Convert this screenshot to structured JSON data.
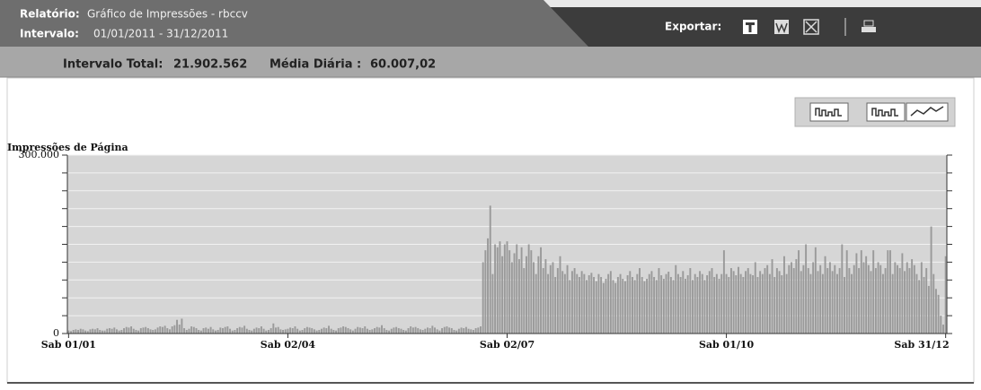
{
  "header": {
    "report_label": "Relatório:",
    "report_value": "Gráfico de Impressões - rbccv",
    "interval_label": "Intervalo:",
    "interval_value": "01/01/2011 - 31/12/2011",
    "export_label": "Exportar:"
  },
  "summary": {
    "total_label": "Intervalo Total:",
    "total_value": "21.902.562",
    "avg_label": "Média Diária :",
    "avg_value": "60.007,02"
  },
  "chart_data": {
    "type": "bar",
    "y_axis_label": "Impressões de Página",
    "color": "#9a9a9a",
    "grid": true,
    "ylim": [
      0,
      300000
    ],
    "yticks": [
      0,
      {
        "value": 30000,
        "label": null
      },
      {
        "value": 60000,
        "label": null
      },
      {
        "value": 90000,
        "label": null
      },
      {
        "value": 120000,
        "label": null
      },
      {
        "value": 150000,
        "label": null
      },
      {
        "value": 180000,
        "label": null
      },
      {
        "value": 210000,
        "label": null
      },
      {
        "value": 240000,
        "label": null
      },
      {
        "value": 270000,
        "label": null
      },
      {
        "value": 300000,
        "label": "300.000"
      }
    ],
    "categories": [
      "Sab 01/01",
      null,
      null,
      null,
      null,
      null,
      null,
      null,
      null,
      null,
      null,
      null,
      null,
      null,
      null,
      null,
      null,
      null,
      null,
      null,
      null,
      null,
      null,
      null,
      null,
      null,
      null,
      null,
      null,
      null,
      null,
      null,
      null,
      null,
      null,
      null,
      null,
      null,
      null,
      null,
      null,
      null,
      null,
      null,
      null,
      null,
      null,
      null,
      null,
      null,
      null,
      null,
      null,
      null,
      null,
      null,
      null,
      null,
      null,
      null,
      null,
      null,
      null,
      null,
      null,
      null,
      null,
      null,
      null,
      null,
      null,
      null,
      null,
      null,
      null,
      null,
      null,
      null,
      null,
      null,
      null,
      null,
      null,
      null,
      null,
      null,
      null,
      null,
      null,
      null,
      null,
      "Sab 02/04",
      null,
      null,
      null,
      null,
      null,
      null,
      null,
      null,
      null,
      null,
      null,
      null,
      null,
      null,
      null,
      null,
      null,
      null,
      null,
      null,
      null,
      null,
      null,
      null,
      null,
      null,
      null,
      null,
      null,
      null,
      null,
      null,
      null,
      null,
      null,
      null,
      null,
      null,
      null,
      null,
      null,
      null,
      null,
      null,
      null,
      null,
      null,
      null,
      null,
      null,
      null,
      null,
      null,
      null,
      null,
      null,
      null,
      null,
      null,
      null,
      null,
      null,
      null,
      null,
      null,
      null,
      null,
      null,
      null,
      null,
      null,
      null,
      null,
      null,
      null,
      null,
      null,
      null,
      null,
      null,
      null,
      null,
      null,
      null,
      null,
      null,
      null,
      null,
      null,
      null,
      "Sab 02/07",
      null,
      null,
      null,
      null,
      null,
      null,
      null,
      null,
      null,
      null,
      null,
      null,
      null,
      null,
      null,
      null,
      null,
      null,
      null,
      null,
      null,
      null,
      null,
      null,
      null,
      null,
      null,
      null,
      null,
      null,
      null,
      null,
      null,
      null,
      null,
      null,
      null,
      null,
      null,
      null,
      null,
      null,
      null,
      null,
      null,
      null,
      null,
      null,
      null,
      null,
      null,
      null,
      null,
      null,
      null,
      null,
      null,
      null,
      null,
      null,
      null,
      null,
      null,
      null,
      null,
      null,
      null,
      null,
      null,
      null,
      null,
      null,
      null,
      null,
      null,
      null,
      null,
      null,
      null,
      null,
      null,
      null,
      null,
      null,
      null,
      null,
      null,
      null,
      null,
      null,
      "Sab 01/10",
      null,
      null,
      null,
      null,
      null,
      null,
      null,
      null,
      null,
      null,
      null,
      null,
      null,
      null,
      null,
      null,
      null,
      null,
      null,
      null,
      null,
      null,
      null,
      null,
      null,
      null,
      null,
      null,
      null,
      null,
      null,
      null,
      null,
      null,
      null,
      null,
      null,
      null,
      null,
      null,
      null,
      null,
      null,
      null,
      null,
      null,
      null,
      null,
      null,
      null,
      null,
      null,
      null,
      null,
      null,
      null,
      null,
      null,
      null,
      null,
      null,
      null,
      null,
      null,
      null,
      null,
      null,
      null,
      null,
      null,
      null,
      null,
      null,
      null,
      null,
      null,
      null,
      null,
      null,
      null,
      null,
      null,
      null,
      null,
      null,
      null,
      null,
      null,
      null,
      null,
      "Sab 31/12"
    ],
    "values": [
      5000,
      4000,
      6000,
      7000,
      6000,
      8000,
      7000,
      5000,
      4000,
      7000,
      8000,
      7000,
      9000,
      6000,
      5000,
      5000,
      8000,
      9000,
      8000,
      10000,
      7000,
      5000,
      6000,
      9000,
      11000,
      10000,
      12000,
      8000,
      6000,
      5000,
      9000,
      10000,
      11000,
      9000,
      7000,
      6000,
      7000,
      10000,
      12000,
      11000,
      13000,
      9000,
      7000,
      12000,
      14000,
      23000,
      15000,
      25000,
      9000,
      6000,
      8000,
      12000,
      11000,
      9000,
      6000,
      5000,
      9000,
      10000,
      8000,
      11000,
      7000,
      5000,
      6000,
      10000,
      9000,
      11000,
      12000,
      8000,
      5000,
      6000,
      9000,
      11000,
      10000,
      13000,
      8000,
      6000,
      5000,
      8000,
      10000,
      9000,
      12000,
      8000,
      5000,
      6000,
      9000,
      17000,
      10000,
      11000,
      7000,
      6000,
      7000,
      8000,
      10000,
      9000,
      12000,
      8000,
      5000,
      6000,
      9000,
      11000,
      10000,
      9000,
      7000,
      5000,
      6000,
      8000,
      10000,
      9000,
      13000,
      8000,
      6000,
      5000,
      9000,
      10000,
      12000,
      11000,
      9000,
      7000,
      5000,
      8000,
      11000,
      10000,
      9000,
      12000,
      8000,
      6000,
      7000,
      9000,
      11000,
      10000,
      14000,
      9000,
      6000,
      5000,
      8000,
      10000,
      11000,
      9000,
      8000,
      6000,
      5000,
      9000,
      12000,
      10000,
      11000,
      9000,
      7000,
      6000,
      8000,
      10000,
      9000,
      13000,
      10000,
      7000,
      5000,
      9000,
      11000,
      12000,
      10000,
      9000,
      6000,
      5000,
      8000,
      10000,
      9000,
      11000,
      8000,
      7000,
      6000,
      9000,
      10000,
      12000,
      120000,
      140000,
      160000,
      215000,
      100000,
      150000,
      145000,
      155000,
      130000,
      150000,
      155000,
      140000,
      120000,
      135000,
      150000,
      125000,
      145000,
      110000,
      130000,
      150000,
      140000,
      120000,
      100000,
      130000,
      145000,
      110000,
      125000,
      100000,
      115000,
      120000,
      95000,
      110000,
      130000,
      105000,
      100000,
      115000,
      90000,
      105000,
      110000,
      100000,
      95000,
      105000,
      100000,
      90000,
      98000,
      102000,
      95000,
      88000,
      100000,
      95000,
      85000,
      92000,
      100000,
      105000,
      90000,
      85000,
      95000,
      100000,
      92000,
      88000,
      98000,
      105000,
      95000,
      90000,
      100000,
      110000,
      95000,
      88000,
      92000,
      100000,
      105000,
      95000,
      90000,
      110000,
      98000,
      92000,
      100000,
      104000,
      95000,
      90000,
      115000,
      100000,
      95000,
      105000,
      92000,
      98000,
      110000,
      90000,
      100000,
      95000,
      105000,
      100000,
      90000,
      98000,
      105000,
      110000,
      95000,
      100000,
      92000,
      100000,
      140000,
      100000,
      95000,
      110000,
      105000,
      98000,
      112000,
      100000,
      95000,
      105000,
      110000,
      100000,
      98000,
      120000,
      95000,
      105000,
      100000,
      110000,
      115000,
      100000,
      125000,
      95000,
      110000,
      105000,
      98000,
      130000,
      100000,
      115000,
      120000,
      110000,
      125000,
      140000,
      105000,
      115000,
      150000,
      110000,
      100000,
      120000,
      145000,
      105000,
      115000,
      100000,
      130000,
      110000,
      120000,
      105000,
      115000,
      100000,
      110000,
      150000,
      95000,
      140000,
      110000,
      100000,
      115000,
      135000,
      110000,
      140000,
      120000,
      130000,
      115000,
      105000,
      140000,
      110000,
      120000,
      115000,
      100000,
      110000,
      140000,
      140000,
      100000,
      120000,
      115000,
      110000,
      135000,
      105000,
      120000,
      110000,
      125000,
      115000,
      100000,
      90000,
      120000,
      95000,
      110000,
      80000,
      180000,
      100000,
      75000,
      65000,
      30000,
      15000,
      130000
    ]
  }
}
